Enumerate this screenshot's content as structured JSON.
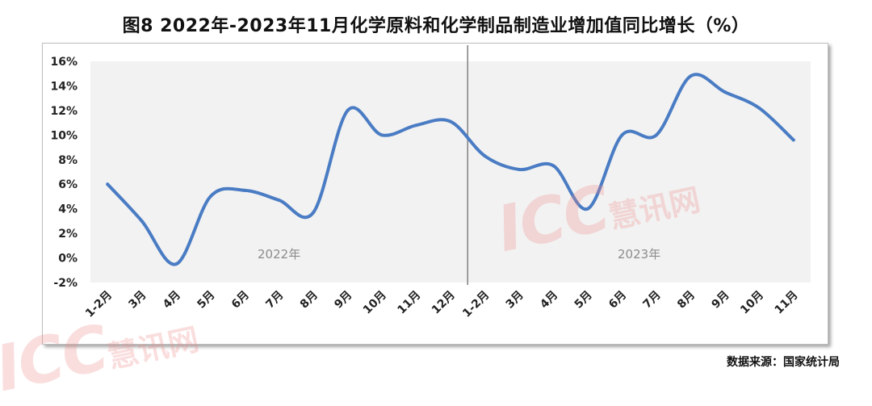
{
  "title": "图8 2022年-2023年11月化学原料和化学制品制造业增加值同比增长（%）",
  "source": "数据来源：国家统计局",
  "watermark": {
    "brand": "ICC",
    "name": "慧讯网"
  },
  "colors": {
    "line": "#4a7cc4",
    "plot_bg": "#f2f2f2",
    "divider": "#808080",
    "year_label": "#8c8c8c"
  },
  "chart_data": {
    "type": "line",
    "title": "图8 2022年-2023年11月化学原料和化学制品制造业增加值同比增长（%）",
    "categories": [
      "1-2月",
      "3月",
      "4月",
      "5月",
      "6月",
      "7月",
      "8月",
      "9月",
      "10月",
      "11月",
      "12月",
      "1-2月",
      "3月",
      "4月",
      "5月",
      "6月",
      "7月",
      "8月",
      "9月",
      "10月",
      "11月"
    ],
    "series": [
      {
        "values": [
          6.0,
          3.0,
          -0.5,
          5.0,
          5.5,
          4.7,
          3.7,
          12.0,
          10.0,
          10.8,
          11.1,
          8.3,
          7.2,
          7.5,
          4.0,
          10.0,
          10.0,
          14.8,
          13.5,
          12.2,
          9.6
        ]
      }
    ],
    "ylim": [
      -2,
      16
    ],
    "yticks": [
      "-2%",
      "0%",
      "2%",
      "4%",
      "6%",
      "8%",
      "10%",
      "12%",
      "14%",
      "16%"
    ],
    "year_labels": [
      "2022年",
      "2023年"
    ],
    "divider_between": [
      10,
      11
    ],
    "grid": false,
    "legend": "none"
  }
}
